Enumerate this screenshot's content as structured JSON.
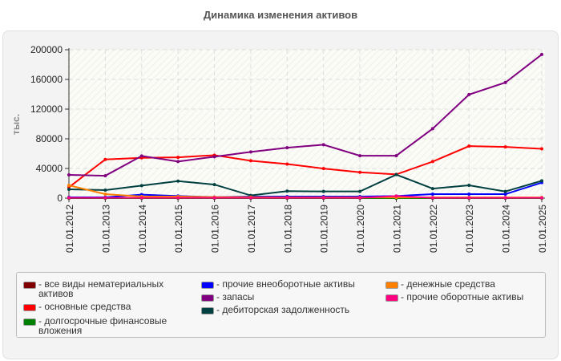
{
  "chart_data": {
    "type": "line",
    "title": "Динамика изменения активов",
    "ylabel": "тыс.",
    "xlabel": "",
    "ylim": [
      0,
      200000
    ],
    "yticks": [
      "0",
      "40000",
      "80000",
      "120000",
      "160000",
      "200000"
    ],
    "grid": true,
    "legend_position": "bottom",
    "categories": [
      "01.01.2012",
      "01.01.2013",
      "01.01.2014",
      "01.01.2015",
      "01.01.2016",
      "01.01.2017",
      "01.01.2018",
      "01.01.2019",
      "01.01.2020",
      "01.01.2021",
      "01.01.2022",
      "01.01.2023",
      "01.01.2024",
      "01.01.2025"
    ],
    "series": [
      {
        "name": "все виды нематериальных активов",
        "color": "#800000",
        "values": [
          0,
          0,
          0,
          0,
          0,
          0,
          0,
          0,
          0,
          0,
          0,
          0,
          0,
          0
        ]
      },
      {
        "name": "основные средства",
        "color": "#ff0000",
        "values": [
          14700,
          52200,
          54300,
          55000,
          57900,
          50400,
          46000,
          39900,
          34900,
          32000,
          49300,
          70100,
          69100,
          66500
        ]
      },
      {
        "name": "долгосрочные финансовые вложения",
        "color": "#008000",
        "values": [
          0,
          0,
          0,
          0,
          0,
          0,
          0,
          0,
          0,
          0,
          0,
          0,
          0,
          0
        ]
      },
      {
        "name": "прочие внеоборотные активы",
        "color": "#0000ff",
        "values": [
          1100,
          1100,
          4700,
          2900,
          1400,
          2200,
          2200,
          2200,
          2200,
          2900,
          5400,
          5400,
          5400,
          20900
        ]
      },
      {
        "name": "запасы",
        "color": "#800080",
        "values": [
          31300,
          30200,
          56900,
          49300,
          55800,
          62300,
          68000,
          72000,
          57200,
          57200,
          93600,
          139600,
          155800,
          193600
        ]
      },
      {
        "name": "дебиторская задолженность",
        "color": "#004040",
        "values": [
          11900,
          10800,
          16900,
          23000,
          18300,
          3600,
          9400,
          9000,
          9000,
          31700,
          12900,
          17300,
          9000,
          23400
        ]
      },
      {
        "name": "денежные средства",
        "color": "#ff8000",
        "values": [
          17300,
          5400,
          2200,
          2200,
          1400,
          1400,
          1000,
          1000,
          1000,
          1000,
          1000,
          1000,
          1000,
          1000
        ]
      },
      {
        "name": "прочие оборотные активы",
        "color": "#ff0080",
        "values": [
          400,
          400,
          400,
          400,
          400,
          400,
          400,
          400,
          400,
          2900,
          400,
          400,
          400,
          400
        ]
      }
    ]
  }
}
